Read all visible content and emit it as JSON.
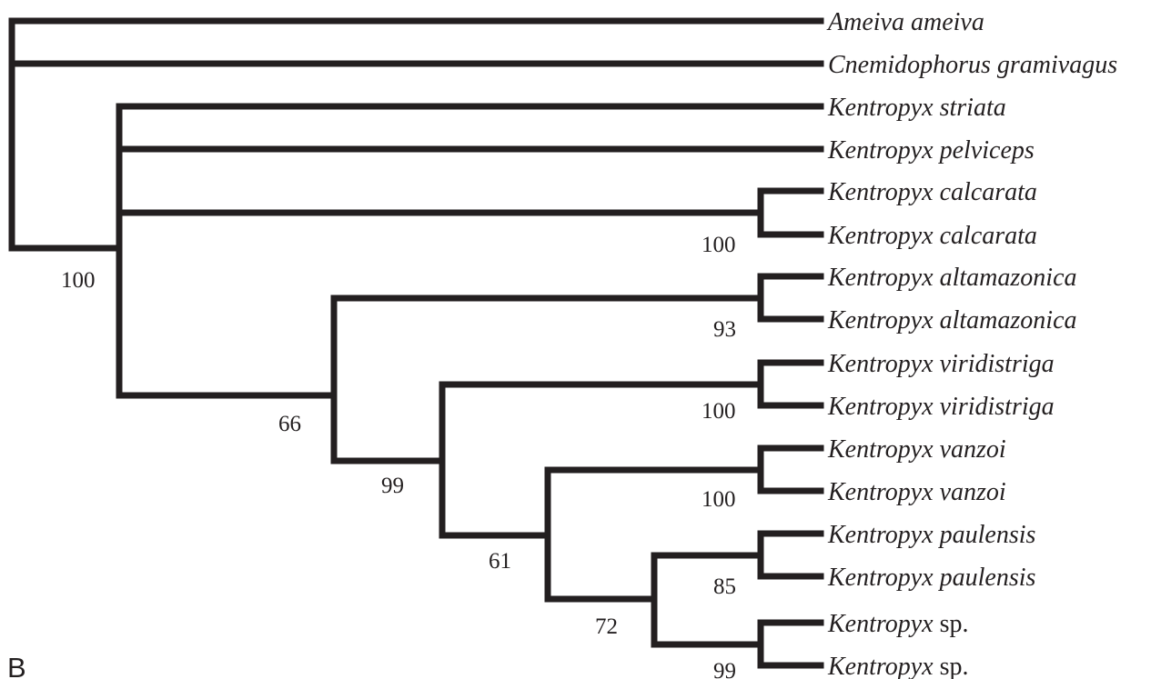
{
  "panel_label": "B",
  "taxa": [
    {
      "genus": "Ameiva",
      "epithet": "ameiva"
    },
    {
      "genus": "Cnemidophorus",
      "epithet": "gramivagus"
    },
    {
      "genus": "Kentropyx",
      "epithet": "striata"
    },
    {
      "genus": "Kentropyx",
      "epithet": "pelviceps"
    },
    {
      "genus": "Kentropyx",
      "epithet": "calcarata"
    },
    {
      "genus": "Kentropyx",
      "epithet": "calcarata"
    },
    {
      "genus": "Kentropyx",
      "epithet": "altamazonica"
    },
    {
      "genus": "Kentropyx",
      "epithet": "altamazonica"
    },
    {
      "genus": "Kentropyx",
      "epithet": "viridistriga"
    },
    {
      "genus": "Kentropyx",
      "epithet": "viridistriga"
    },
    {
      "genus": "Kentropyx",
      "epithet": "vanzoi"
    },
    {
      "genus": "Kentropyx",
      "epithet": "vanzoi"
    },
    {
      "genus": "Kentropyx",
      "epithet": "paulensis"
    },
    {
      "genus": "Kentropyx",
      "epithet": "paulensis"
    },
    {
      "genus": "Kentropyx",
      "epithet": "",
      "suffix": "sp."
    },
    {
      "genus": "Kentropyx",
      "epithet": "",
      "suffix": "sp."
    }
  ],
  "support_values": {
    "root_kentropyx": "100",
    "calcarata": "100",
    "altamazonica": "93",
    "clade_66": "66",
    "viridistriga": "100",
    "clade_99": "99",
    "vanzoi": "100",
    "clade_61": "61",
    "paulensis": "85",
    "clade_72": "72",
    "sp": "99"
  },
  "colors": {
    "ink": "#231f20",
    "background": "#ffffff"
  }
}
